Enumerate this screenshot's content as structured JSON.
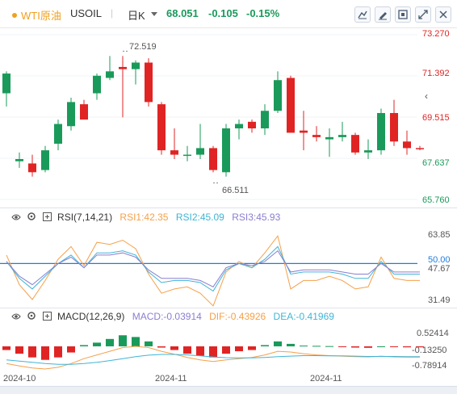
{
  "header": {
    "symbol_name": "WTI原油",
    "symbol_code": "USOIL",
    "period": "日K",
    "last_price": "68.051",
    "change": "-0.105",
    "change_pct": "-0.15%",
    "toolbar": [
      "draw-line-icon",
      "pen-icon",
      "fullscreen-icon",
      "expand-arrows-icon",
      "close-icon"
    ]
  },
  "price_axis": [
    "73.270",
    "71.392",
    "69.515",
    "67.637",
    "65.760"
  ],
  "annotations": {
    "high": "72.519",
    "low": "66.511"
  },
  "rsi": {
    "title": "RSI(7,14,21)",
    "rsi1": "RSI1:42.35",
    "rsi2": "RSI2:45.09",
    "rsi3": "RSI3:45.93",
    "axis": [
      "63.85",
      "50.00",
      "47.67",
      "31.49"
    ],
    "colors": {
      "rsi1": "#f5a04a",
      "rsi2": "#3fb5d6",
      "rsi3": "#8a7fd0"
    }
  },
  "macd": {
    "title": "MACD(12,26,9)",
    "macd": "MACD:-0.03914",
    "dif": "DIF:-0.43926",
    "dea": "DEA:-0.41969",
    "axis": [
      "0.52414",
      "-0.13250",
      "-0.78914"
    ],
    "colors": {
      "macd": "#8a7fd0",
      "dif": "#f5a04a",
      "dea": "#3fb5d6"
    }
  },
  "x_axis": [
    "2024-10",
    "2024-11",
    "2024-11"
  ],
  "colors": {
    "up": "#1a9a5a",
    "down": "#e02424",
    "accent": "#1e7de0",
    "rsi_line": "#1a7fd8"
  },
  "chart_data": {
    "type": "candlestick",
    "ylim": [
      65.76,
      73.27
    ],
    "candles": [
      {
        "o": 70.6,
        "h": 71.6,
        "l": 70.0,
        "c": 71.5
      },
      {
        "o": 67.5,
        "h": 67.9,
        "l": 67.2,
        "c": 67.6
      },
      {
        "o": 67.4,
        "h": 67.8,
        "l": 66.8,
        "c": 67.0
      },
      {
        "o": 67.1,
        "h": 68.2,
        "l": 67.0,
        "c": 68.0
      },
      {
        "o": 68.3,
        "h": 69.4,
        "l": 68.0,
        "c": 69.2
      },
      {
        "o": 69.1,
        "h": 70.4,
        "l": 68.9,
        "c": 70.2
      },
      {
        "o": 70.1,
        "h": 70.3,
        "l": 69.4,
        "c": 69.4
      },
      {
        "o": 70.6,
        "h": 71.5,
        "l": 70.3,
        "c": 71.4
      },
      {
        "o": 71.3,
        "h": 72.3,
        "l": 71.2,
        "c": 71.6
      },
      {
        "o": 71.8,
        "h": 72.3,
        "l": 69.5,
        "c": 71.7
      },
      {
        "o": 71.7,
        "h": 72.1,
        "l": 71.0,
        "c": 72.0
      },
      {
        "o": 72.0,
        "h": 72.2,
        "l": 70.0,
        "c": 70.2
      },
      {
        "o": 70.1,
        "h": 70.2,
        "l": 67.8,
        "c": 68.0
      },
      {
        "o": 68.0,
        "h": 69.0,
        "l": 67.6,
        "c": 67.8
      },
      {
        "o": 67.8,
        "h": 68.2,
        "l": 67.5,
        "c": 67.8
      },
      {
        "o": 67.8,
        "h": 69.2,
        "l": 67.6,
        "c": 68.1
      },
      {
        "o": 68.1,
        "h": 68.2,
        "l": 67.0,
        "c": 67.1
      },
      {
        "o": 67.0,
        "h": 69.2,
        "l": 66.8,
        "c": 69.0
      },
      {
        "o": 69.0,
        "h": 69.4,
        "l": 68.5,
        "c": 69.2
      },
      {
        "o": 69.3,
        "h": 69.4,
        "l": 68.8,
        "c": 69.0
      },
      {
        "o": 69.0,
        "h": 70.1,
        "l": 68.7,
        "c": 69.8
      },
      {
        "o": 69.8,
        "h": 71.6,
        "l": 69.7,
        "c": 71.2
      },
      {
        "o": 71.3,
        "h": 71.4,
        "l": 68.8,
        "c": 68.8
      },
      {
        "o": 68.9,
        "h": 69.8,
        "l": 68.0,
        "c": 68.8
      },
      {
        "o": 68.7,
        "h": 69.1,
        "l": 68.4,
        "c": 68.6
      },
      {
        "o": 68.5,
        "h": 69.0,
        "l": 67.7,
        "c": 68.6
      },
      {
        "o": 68.6,
        "h": 69.3,
        "l": 68.4,
        "c": 68.7
      },
      {
        "o": 68.7,
        "h": 68.8,
        "l": 67.8,
        "c": 67.9
      },
      {
        "o": 67.9,
        "h": 68.5,
        "l": 67.6,
        "c": 68.0
      },
      {
        "o": 68.0,
        "h": 69.9,
        "l": 67.8,
        "c": 69.7
      },
      {
        "o": 69.7,
        "h": 70.3,
        "l": 68.2,
        "c": 68.4
      },
      {
        "o": 68.4,
        "h": 68.9,
        "l": 67.8,
        "c": 68.1
      },
      {
        "o": 68.1,
        "h": 68.2,
        "l": 68.0,
        "c": 68.05
      }
    ],
    "rsi_range": [
      31.49,
      63.85
    ],
    "rsi1": [
      54,
      40,
      33,
      42,
      52,
      58,
      49,
      60,
      59,
      61,
      57,
      45,
      36,
      38,
      39,
      36,
      30,
      46,
      51,
      48,
      55,
      63,
      38,
      42,
      42,
      44,
      42,
      38,
      39,
      53,
      43,
      42,
      42
    ],
    "rsi2": [
      51,
      43,
      38,
      44,
      50,
      54,
      48,
      55,
      55,
      56,
      54,
      46,
      41,
      42,
      42,
      41,
      37,
      47,
      50,
      48,
      52,
      58,
      45,
      46,
      46,
      46,
      45,
      43,
      43,
      51,
      45,
      45,
      45
    ],
    "rsi3": [
      51,
      44,
      40,
      45,
      50,
      53,
      48,
      54,
      54,
      55,
      53,
      47,
      43,
      43,
      43,
      42,
      39,
      48,
      50,
      49,
      51,
      56,
      46,
      47,
      47,
      47,
      46,
      45,
      45,
      50,
      46,
      46,
      46
    ],
    "macd_range": [
      -0.78914,
      0.52414
    ],
    "macd_hist": [
      -0.15,
      -0.3,
      -0.45,
      -0.55,
      -0.45,
      -0.25,
      0.05,
      0.15,
      0.3,
      0.45,
      0.38,
      0.2,
      -0.05,
      -0.15,
      -0.3,
      -0.38,
      -0.45,
      -0.3,
      -0.2,
      -0.15,
      0.05,
      0.2,
      0.1,
      0.03,
      0.02,
      0.01,
      -0.02,
      -0.05,
      -0.06,
      0.0,
      -0.03,
      -0.04,
      -0.04
    ],
    "dif": [
      -0.7,
      -0.8,
      -0.88,
      -0.92,
      -0.85,
      -0.7,
      -0.5,
      -0.35,
      -0.2,
      -0.05,
      0.0,
      -0.05,
      -0.2,
      -0.32,
      -0.45,
      -0.55,
      -0.62,
      -0.55,
      -0.5,
      -0.45,
      -0.35,
      -0.2,
      -0.23,
      -0.3,
      -0.35,
      -0.38,
      -0.4,
      -0.42,
      -0.43,
      -0.4,
      -0.43,
      -0.44,
      -0.44
    ],
    "dea": [
      -0.55,
      -0.6,
      -0.65,
      -0.7,
      -0.73,
      -0.73,
      -0.7,
      -0.65,
      -0.58,
      -0.5,
      -0.42,
      -0.36,
      -0.33,
      -0.33,
      -0.35,
      -0.39,
      -0.43,
      -0.46,
      -0.47,
      -0.47,
      -0.45,
      -0.42,
      -0.4,
      -0.38,
      -0.38,
      -0.39,
      -0.39,
      -0.4,
      -0.41,
      -0.41,
      -0.41,
      -0.42,
      -0.42
    ]
  }
}
